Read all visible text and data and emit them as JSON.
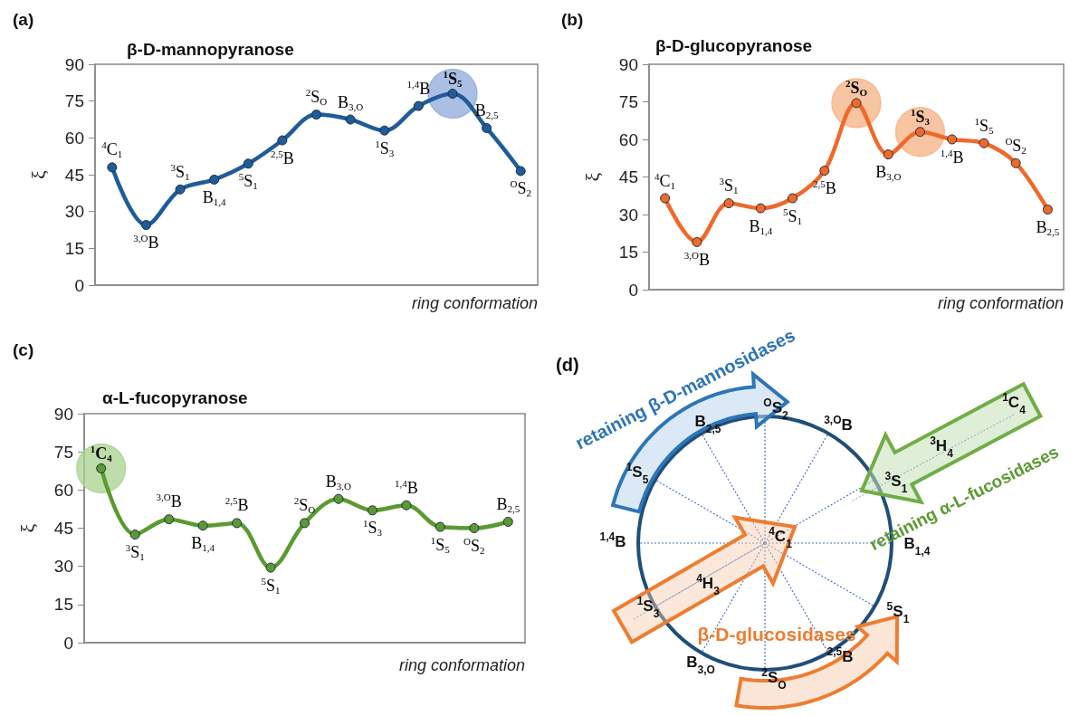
{
  "chart_data": [
    {
      "type": "line",
      "title": "β-D-mannopyranose",
      "ylabel": "ξ",
      "xlabel": "ring conformation",
      "marker": "circle",
      "line_style": "solid",
      "ylim": [
        0,
        90
      ],
      "yticks": [
        0,
        15,
        30,
        45,
        60,
        75,
        90
      ],
      "tick_labels": "y",
      "categories": [
        null,
        null,
        null,
        null,
        null,
        null,
        null,
        null,
        null,
        null,
        null,
        null,
        null
      ],
      "series": [
        {
          "color": "#1f5c99",
          "values": [
            48,
            24.5,
            39,
            43,
            49.5,
            59,
            69.5,
            67.5,
            63,
            73,
            78,
            64,
            46.5
          ]
        },
        {
          "type": "scatter",
          "color": "#8faadc",
          "values": [
            null,
            null,
            null,
            null,
            null,
            null,
            null,
            null,
            null,
            null,
            78,
            null,
            null
          ]
        }
      ],
      "annotations": [
        "(a)",
        {
          "text": "$^{4}$C$_{1}$",
          "y": 48
        },
        {
          "text": "$^{3,O}$B",
          "y": 24.5
        },
        {
          "text": "$^{3}$S$_{1}$",
          "y": 39
        },
        {
          "text": "B$_{1,4}$",
          "y": 43
        },
        {
          "text": "$^{5}$S$_{1}$",
          "y": 49.5
        },
        {
          "text": "$^{2,5}$B",
          "y": 59
        },
        {
          "text": "$^{2}$S$_{O}$",
          "y": 69.5
        },
        {
          "text": "B$_{3,O}$",
          "y": 67.5
        },
        {
          "text": "$^{1}$S$_{3}$",
          "y": 63
        },
        {
          "text": "$^{1,4}$B",
          "y": 73
        },
        {
          "text": "$^{1}$S$_{5}$",
          "y": 78
        },
        {
          "text": "B$_{2,5}$",
          "y": 64
        },
        {
          "text": "$^{O}$S$_{2}$",
          "y": 46.5
        }
      ]
    },
    {
      "type": "line",
      "title": "β-D-glucopyranose",
      "ylabel": "ξ",
      "xlabel": "ring conformation",
      "marker": "circle",
      "line_style": "solid",
      "ylim": [
        0,
        90
      ],
      "yticks": [
        0,
        15,
        30,
        45,
        60,
        75,
        90
      ],
      "tick_labels": "y",
      "categories": [
        null,
        null,
        null,
        null,
        null,
        null,
        null,
        null,
        null,
        null,
        null,
        null,
        null
      ],
      "series": [
        {
          "color": "#ef6a2a",
          "values": [
            36.5,
            19,
            34.5,
            32.5,
            36.5,
            47.5,
            74.5,
            54,
            63,
            60,
            58.5,
            50.5,
            32
          ]
        },
        {
          "type": "scatter",
          "color": "#f4b183",
          "values": [
            null,
            null,
            null,
            null,
            null,
            null,
            74.5,
            null,
            63,
            null,
            null,
            null,
            null
          ]
        }
      ],
      "annotations": [
        "(b)",
        {
          "text": "$^{4}$C$_{1}$",
          "y": 36.5
        },
        {
          "text": "$^{3,O}$B",
          "y": 19
        },
        {
          "text": "$^{3}$S$_{1}$",
          "y": 34.5
        },
        {
          "text": "B$_{1,4}$",
          "y": 32.5
        },
        {
          "text": "$^{5}$S$_{1}$",
          "y": 36.5
        },
        {
          "text": "$^{2,5}$B",
          "y": 47.5
        },
        {
          "text": "$^{2}$S$_{O}$",
          "y": 74.5
        },
        {
          "text": "B$_{3,O}$",
          "y": 54
        },
        {
          "text": "$^{1}$S$_{3}$",
          "y": 63
        },
        {
          "text": "$^{1,4}$B",
          "y": 60
        },
        {
          "text": "$^{1}$S$_{5}$",
          "y": 58.5
        },
        {
          "text": "$^{O}$S$_{2}$",
          "y": 50.5
        },
        {
          "text": "B$_{2,5}$",
          "y": 32
        }
      ]
    },
    {
      "type": "line",
      "title": "α-L-fucopyranose",
      "ylabel": "ξ",
      "xlabel": "ring conformation",
      "marker": "circle",
      "line_style": "solid",
      "ylim": [
        0,
        90
      ],
      "yticks": [
        0,
        15,
        30,
        45,
        60,
        75,
        90
      ],
      "tick_labels": "y",
      "categories": [
        null,
        null,
        null,
        null,
        null,
        null,
        null,
        null,
        null,
        null,
        null,
        null,
        null
      ],
      "series": [
        {
          "color": "#5b9a32",
          "values": [
            68.5,
            42.5,
            48.5,
            46,
            47,
            29.5,
            47,
            56.5,
            52,
            54,
            45.5,
            45,
            47.5
          ]
        },
        {
          "type": "scatter",
          "color": "#a9d18e",
          "values": [
            68.5,
            null,
            null,
            null,
            null,
            null,
            null,
            null,
            null,
            null,
            null,
            null,
            null
          ]
        }
      ],
      "annotations": [
        "(c)",
        {
          "text": "$^{1}$C$_{4}$",
          "y": 68.5
        },
        {
          "text": "$^{3}$S$_{1}$",
          "y": 42.5
        },
        {
          "text": "$^{3,O}$B",
          "y": 48.5
        },
        {
          "text": "B$_{1,4}$",
          "y": 46
        },
        {
          "text": "$^{2,5}$B",
          "y": 47
        },
        {
          "text": "$^{5}$S$_{1}$",
          "y": 29.5
        },
        {
          "text": "$^{2}$S$_{O}$",
          "y": 47
        },
        {
          "text": "B$_{3,O}$",
          "y": 56.5
        },
        {
          "text": "$^{1}$S$_{3}$",
          "y": 52
        },
        {
          "text": "$^{1,4}$B",
          "y": 54
        },
        {
          "text": "$^{1}$S$_{5}$",
          "y": 45.5
        },
        {
          "text": "$^{O}$S$_{2}$",
          "y": 45
        },
        {
          "text": "B$_{2,5}$",
          "y": 47.5
        }
      ]
    },
    {
      "type": "other",
      "annotations": [
        "(d)",
        "retaining β-D-mannosidases",
        "retaining α-L-fucosidases",
        "β-D-glucosidases",
        "$^{O}$S$_{2}$",
        "$^{3,O}$B",
        "$^{3}$S$_{1}$",
        "B$_{1,4}$",
        "$^{5}$S$_{1}$",
        "$^{2,5}$B",
        "$^{2}$S$_{O}$",
        "B$_{3,O}$",
        "$^{1}$S$_{3}$",
        "$^{1,4}$B",
        "$^{1}$S$_{5}$",
        "B$_{2,5}$",
        "$^{4}$C$_{1}$",
        "$^{4}$H$_{3}$",
        "$^{1}$C$_{4}$",
        "$^{3}$H$_{4}$"
      ]
    }
  ]
}
